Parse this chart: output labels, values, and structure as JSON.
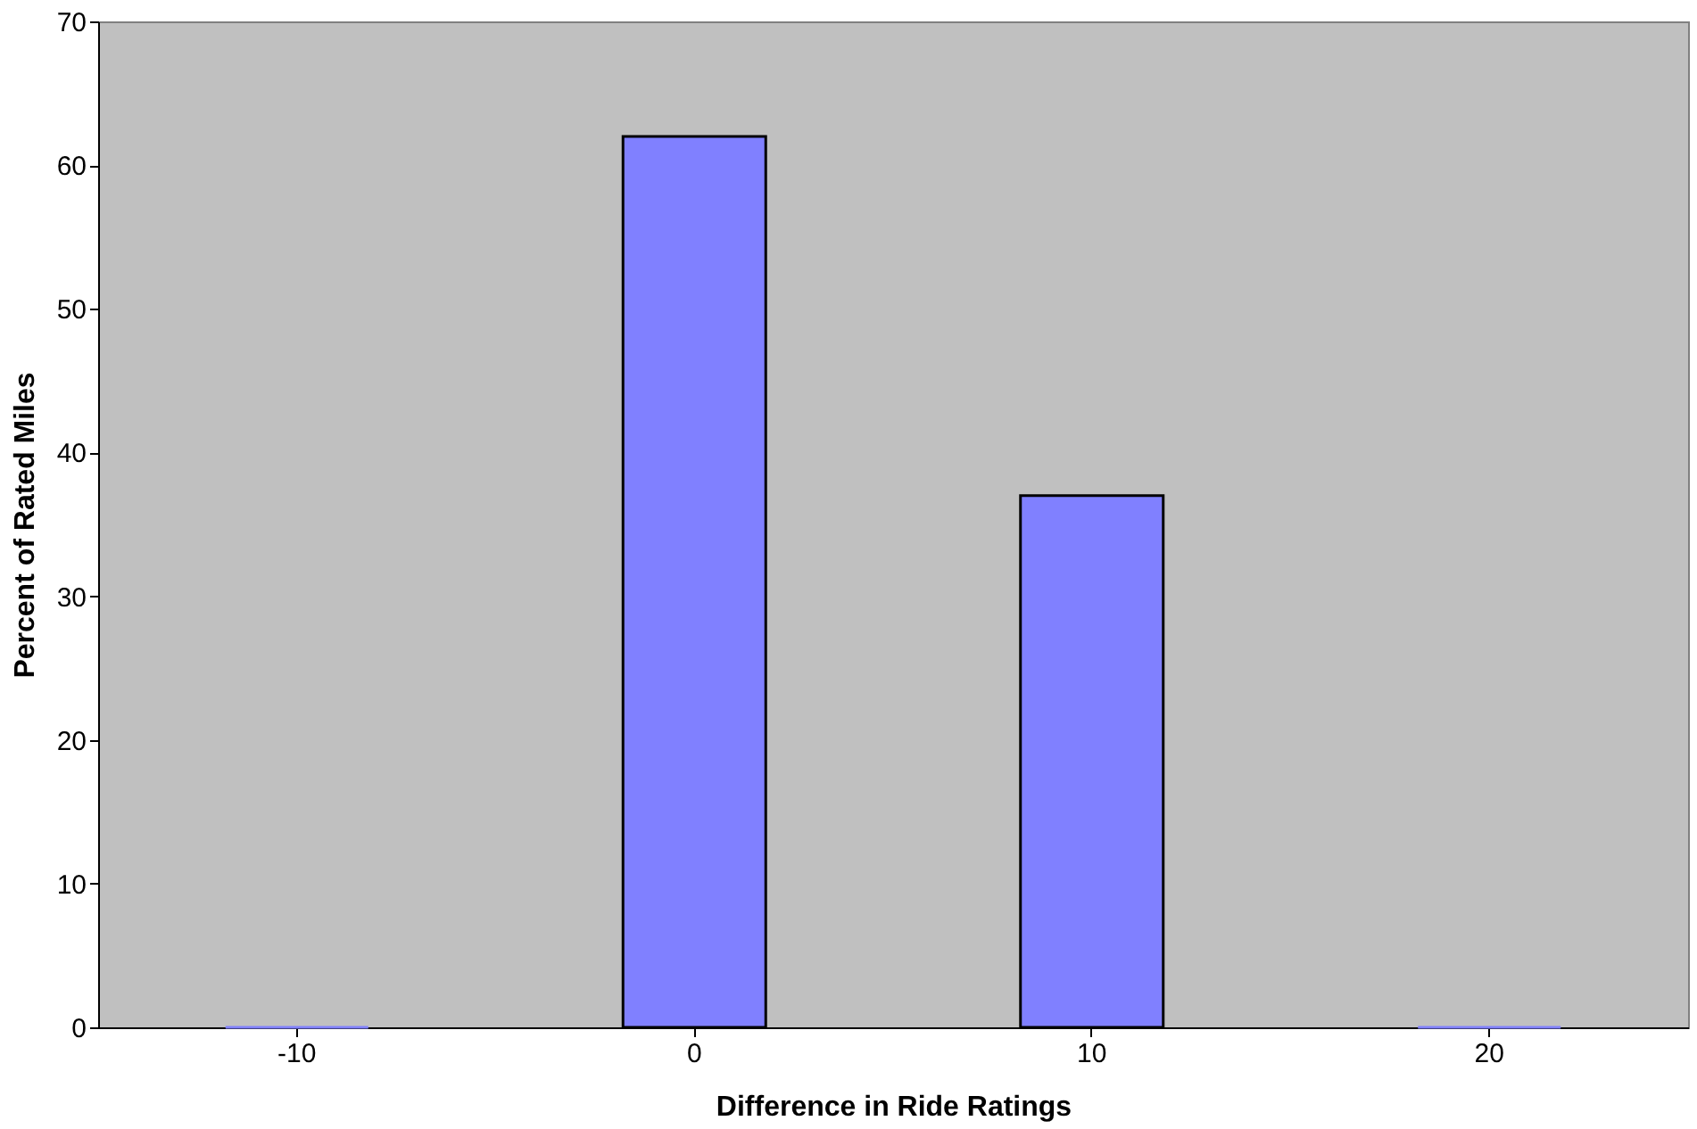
{
  "chart_data": {
    "type": "bar",
    "xlabel": "Difference in Ride Ratings",
    "ylabel": "Percent of Rated Miles",
    "categories": [
      "-10",
      "0",
      "10",
      "20"
    ],
    "values": [
      0,
      62,
      37,
      0
    ],
    "color": "#8080ff",
    "ylim": [
      0,
      70
    ],
    "yticks": [
      0,
      10,
      20,
      30,
      40,
      50,
      60,
      70
    ],
    "grid": false
  }
}
